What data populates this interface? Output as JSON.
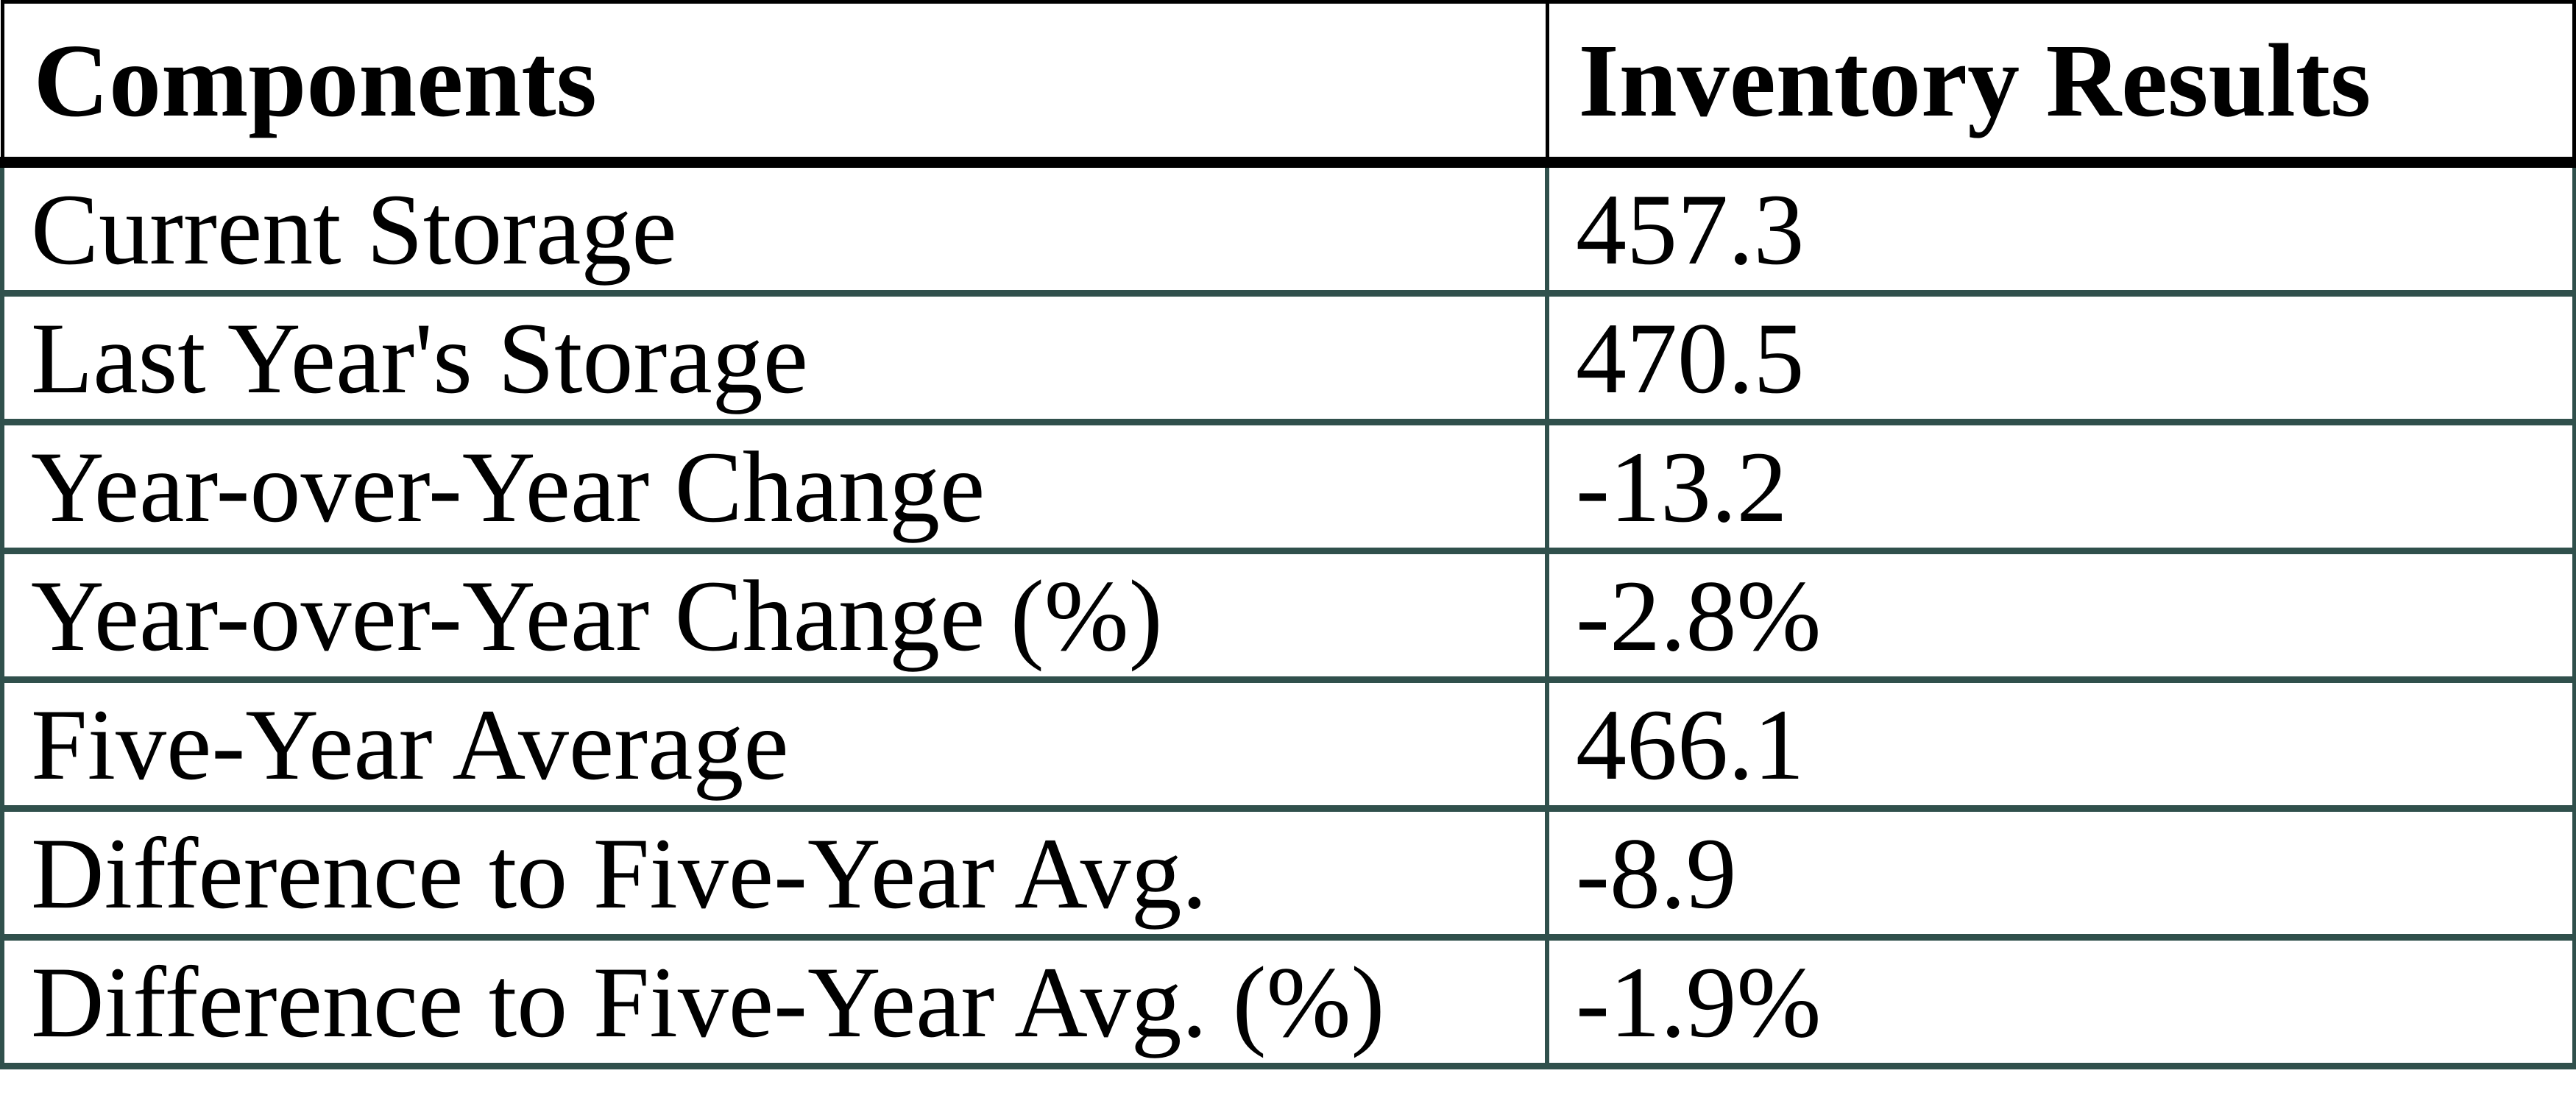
{
  "table": {
    "columns": [
      "Components",
      "Inventory Results"
    ],
    "rows": [
      {
        "label": "Current Storage",
        "value": "457.3"
      },
      {
        "label": "Last Year's Storage",
        "value": "470.5"
      },
      {
        "label": "Year-over-Year Change",
        "value": "-13.2"
      },
      {
        "label": "Year-over-Year Change (%)",
        "value": "-2.8%"
      },
      {
        "label": "Five-Year Average",
        "value": "466.1"
      },
      {
        "label": "Difference to Five-Year Avg.",
        "value": "-8.9"
      },
      {
        "label": "Difference to Five-Year Avg. (%)",
        "value": "-1.9%"
      }
    ]
  },
  "colors": {
    "header_border": "#000000",
    "grid_border": "#30504c",
    "background": "#ffffff",
    "text": "#000000"
  }
}
